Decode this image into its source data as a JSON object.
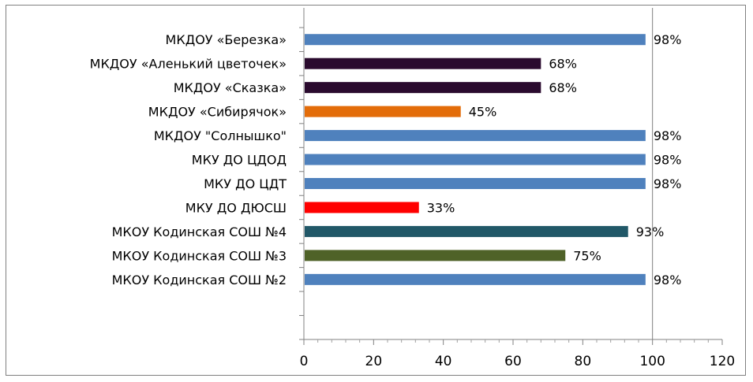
{
  "chart_data": {
    "type": "bar",
    "orientation": "horizontal",
    "categories": [
      "МКДОУ «Березка»",
      "МКДОУ «Аленький цветочек»",
      "МКДОУ «Сказка»",
      "МКДОУ «Сибирячок»",
      "МКДОУ \"Солнышко\"",
      "МКУ ДО ЦДОД",
      "МКУ ДО ЦДТ",
      "МКУ ДО ДЮСШ",
      "МКОУ Кодинская СОШ №4",
      "МКОУ Кодинская СОШ №3",
      "МКОУ Кодинская СОШ №2"
    ],
    "values": [
      98,
      68,
      68,
      45,
      98,
      98,
      98,
      33,
      93,
      75,
      98
    ],
    "data_labels": [
      "98%",
      "68%",
      "68%",
      "45%",
      "98%",
      "98%",
      "98%",
      "33%",
      "93%",
      "75%",
      "98%"
    ],
    "bar_colors": [
      "#4f81bd",
      "#2a0a2e",
      "#2a0a2e",
      "#e36c09",
      "#4f81bd",
      "#4f81bd",
      "#4f81bd",
      "#ff0000",
      "#215868",
      "#4f6228",
      "#4f81bd"
    ],
    "x_ticks": [
      "0",
      "20",
      "40",
      "60",
      "80",
      "100",
      "120"
    ],
    "xlim": [
      0,
      120
    ],
    "gridlines": [
      100
    ],
    "empty_rows_below": 2,
    "title": "",
    "xlabel": "",
    "ylabel": "",
    "legend": "none"
  }
}
